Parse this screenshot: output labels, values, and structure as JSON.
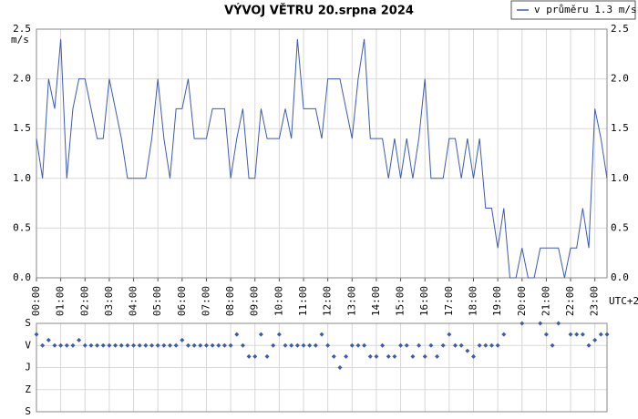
{
  "chart_data": [
    {
      "type": "line",
      "title": "VÝVOJ VĚTRU  20.srpna 2024",
      "y_label": "m/s",
      "x_label": "UTC+2",
      "x": [
        0,
        0.25,
        0.5,
        0.75,
        1,
        1.25,
        1.5,
        1.75,
        2,
        2.25,
        2.5,
        2.75,
        3,
        3.25,
        3.5,
        3.75,
        4,
        4.25,
        4.5,
        4.75,
        5,
        5.25,
        5.5,
        5.75,
        6,
        6.25,
        6.5,
        6.75,
        7,
        7.25,
        7.5,
        7.75,
        8,
        8.25,
        8.5,
        8.75,
        9,
        9.25,
        9.5,
        9.75,
        10,
        10.25,
        10.5,
        10.75,
        11,
        11.25,
        11.5,
        11.75,
        12,
        12.25,
        12.5,
        12.75,
        13,
        13.25,
        13.5,
        13.75,
        14,
        14.25,
        14.5,
        14.75,
        15,
        15.25,
        15.5,
        15.75,
        16,
        16.25,
        16.5,
        16.75,
        17,
        17.25,
        17.5,
        17.75,
        18,
        18.25,
        18.5,
        18.75,
        19,
        19.25,
        19.5,
        19.75,
        20,
        20.25,
        20.5,
        20.75,
        21,
        21.25,
        21.5,
        21.75,
        22,
        22.25,
        22.5,
        22.75,
        23,
        23.25,
        23.5
      ],
      "series": [
        {
          "name": "v průměru 1.3 m/s",
          "color": "#3d5ca8",
          "values": [
            1.4,
            1.0,
            2.0,
            1.7,
            2.4,
            1.0,
            1.7,
            2.0,
            2.0,
            1.7,
            1.4,
            1.4,
            2.0,
            1.7,
            1.4,
            1.0,
            1.0,
            1.0,
            1.0,
            1.4,
            2.0,
            1.4,
            1.0,
            1.7,
            1.7,
            2.0,
            1.4,
            1.4,
            1.4,
            1.7,
            1.7,
            1.7,
            1.0,
            1.4,
            1.7,
            1.0,
            1.0,
            1.7,
            1.4,
            1.4,
            1.4,
            1.7,
            1.4,
            2.4,
            1.7,
            1.7,
            1.7,
            1.4,
            2.0,
            2.0,
            2.0,
            1.7,
            1.4,
            2.0,
            2.4,
            1.4,
            1.4,
            1.4,
            1.0,
            1.4,
            1.0,
            1.4,
            1.0,
            1.4,
            2.0,
            1.0,
            1.0,
            1.0,
            1.4,
            1.4,
            1.0,
            1.4,
            1.0,
            1.4,
            0.7,
            0.7,
            0.3,
            0.7,
            0.0,
            0.0,
            0.3,
            0.0,
            0.0,
            0.3,
            0.3,
            0.3,
            0.3,
            0.0,
            0.3,
            0.3,
            0.7,
            0.3,
            1.7,
            1.4,
            1.0
          ]
        }
      ],
      "xlim": [
        0,
        23.5
      ],
      "xticks": [
        {
          "value": 0,
          "label": "00:00"
        },
        {
          "value": 1,
          "label": "01:00"
        },
        {
          "value": 2,
          "label": "02:00"
        },
        {
          "value": 3,
          "label": "03:00"
        },
        {
          "value": 4,
          "label": "04:00"
        },
        {
          "value": 5,
          "label": "05:00"
        },
        {
          "value": 6,
          "label": "06:00"
        },
        {
          "value": 7,
          "label": "07:00"
        },
        {
          "value": 8,
          "label": "08:00"
        },
        {
          "value": 9,
          "label": "09:00"
        },
        {
          "value": 10,
          "label": "10:00"
        },
        {
          "value": 11,
          "label": "11:00"
        },
        {
          "value": 12,
          "label": "12:00"
        },
        {
          "value": 13,
          "label": "13:00"
        },
        {
          "value": 14,
          "label": "14:00"
        },
        {
          "value": 15,
          "label": "15:00"
        },
        {
          "value": 16,
          "label": "16:00"
        },
        {
          "value": 17,
          "label": "17:00"
        },
        {
          "value": 18,
          "label": "18:00"
        },
        {
          "value": 19,
          "label": "19:00"
        },
        {
          "value": 20,
          "label": "20:00"
        },
        {
          "value": 21,
          "label": "21:00"
        },
        {
          "value": 22,
          "label": "22:00"
        },
        {
          "value": 23,
          "label": "23:00"
        }
      ],
      "ylim": [
        0,
        2.5
      ],
      "yticks": [
        {
          "value": 0,
          "label": "0.0"
        },
        {
          "value": 0.5,
          "label": "0.5"
        },
        {
          "value": 1,
          "label": "1.0"
        },
        {
          "value": 1.5,
          "label": "1.5"
        },
        {
          "value": 2,
          "label": "2.0"
        },
        {
          "value": 2.5,
          "label": "2.5"
        }
      ],
      "grid": true,
      "legend": "top-right"
    },
    {
      "type": "scatter",
      "color": "#3d5ca8",
      "x": [
        0,
        0.25,
        0.5,
        0.75,
        1,
        1.25,
        1.5,
        1.75,
        2,
        2.25,
        2.5,
        2.75,
        3,
        3.25,
        3.5,
        3.75,
        4,
        4.25,
        4.5,
        4.75,
        5,
        5.25,
        5.5,
        5.75,
        6,
        6.25,
        6.5,
        6.75,
        7,
        7.25,
        7.5,
        7.75,
        8,
        8.25,
        8.5,
        8.75,
        9,
        9.25,
        9.5,
        9.75,
        10,
        10.25,
        10.5,
        10.75,
        11,
        11.25,
        11.5,
        11.75,
        12,
        12.25,
        12.5,
        12.75,
        13,
        13.25,
        13.5,
        13.75,
        14,
        14.25,
        14.5,
        14.75,
        15,
        15.25,
        15.5,
        15.75,
        16,
        16.25,
        16.5,
        16.75,
        17,
        17.25,
        17.5,
        17.75,
        18,
        18.25,
        18.5,
        18.75,
        19,
        19.25,
        19.5,
        19.75,
        20,
        20.25,
        20.5,
        20.75,
        21,
        21.25,
        21.5,
        21.75,
        22,
        22.25,
        22.5,
        22.75,
        23,
        23.25,
        23.5
      ],
      "values": [
        45,
        90,
        68,
        90,
        90,
        90,
        90,
        68,
        90,
        90,
        90,
        90,
        90,
        90,
        90,
        90,
        90,
        90,
        90,
        90,
        90,
        90,
        90,
        90,
        68,
        90,
        90,
        90,
        90,
        90,
        90,
        90,
        90,
        45,
        90,
        135,
        135,
        45,
        135,
        90,
        45,
        90,
        90,
        90,
        90,
        90,
        90,
        45,
        90,
        135,
        180,
        135,
        90,
        90,
        90,
        135,
        135,
        90,
        135,
        135,
        90,
        90,
        135,
        90,
        135,
        90,
        135,
        90,
        45,
        90,
        90,
        112,
        135,
        90,
        90,
        90,
        90,
        45,
        null,
        null,
        0,
        null,
        null,
        0,
        45,
        90,
        0,
        null,
        45,
        45,
        45,
        90,
        68,
        45,
        45
      ],
      "xlim": [
        0,
        23.5
      ],
      "xticks": [
        0,
        1,
        2,
        3,
        4,
        5,
        6,
        7,
        8,
        9,
        10,
        11,
        12,
        13,
        14,
        15,
        16,
        17,
        18,
        19,
        20,
        21,
        22,
        23
      ],
      "ylim": [
        360,
        0
      ],
      "yticks": [
        {
          "value": 0,
          "label": "S"
        },
        {
          "value": 90,
          "label": "V"
        },
        {
          "value": 180,
          "label": "J"
        },
        {
          "value": 270,
          "label": "Z"
        },
        {
          "value": 360,
          "label": "S"
        }
      ],
      "grid": true
    }
  ]
}
